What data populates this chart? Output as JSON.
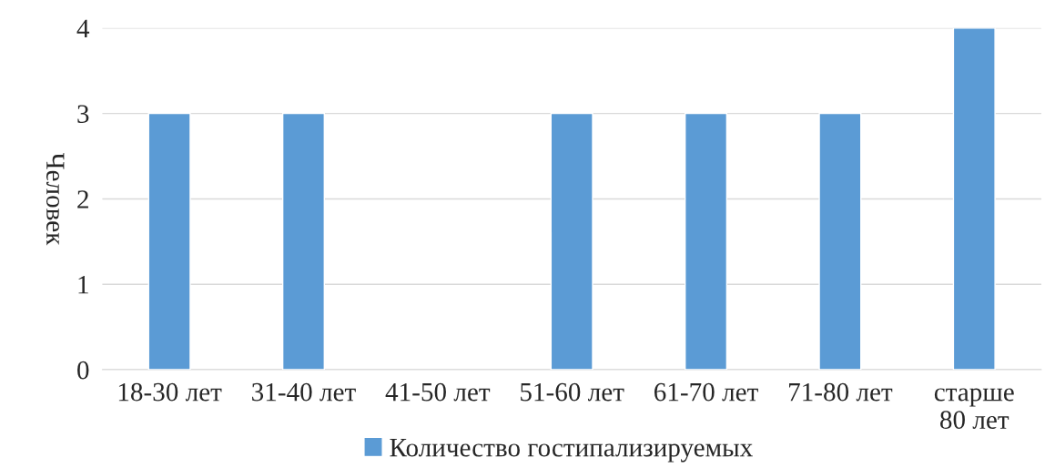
{
  "chart_data": {
    "type": "bar",
    "ylabel": "Человек",
    "categories": [
      "18-30 лет",
      "31-40 лет",
      "41-50 лет",
      "51-60 лет",
      "61-70 лет",
      "71-80 лет",
      "старше 80 лет"
    ],
    "series": [
      {
        "name": "Количество гостипализируемых",
        "color": "#5b9bd5",
        "values": [
          3,
          3,
          null,
          3,
          3,
          3,
          4
        ]
      }
    ],
    "ylim": [
      0,
      4
    ],
    "yticks": [
      0,
      1,
      2,
      3,
      4
    ],
    "grid": "y",
    "legend": "bottom"
  }
}
